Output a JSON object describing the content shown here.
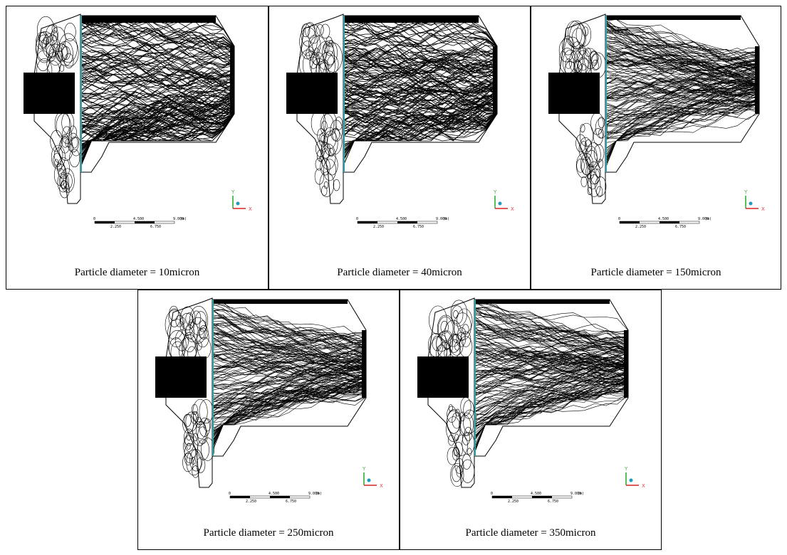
{
  "panels": [
    {
      "caption": "Particle diameter = 10micron",
      "scale_top": [
        "0",
        "4.500",
        "9.000"
      ],
      "unit": "(m)",
      "scale_bottom": [
        "2.250",
        "6.750"
      ],
      "axis_y": "Y",
      "axis_x": "X"
    },
    {
      "caption": "Particle diameter = 40micron",
      "scale_top": [
        "0",
        "4.500",
        "9.000"
      ],
      "unit": "(m)",
      "scale_bottom": [
        "2.250",
        "6.750"
      ],
      "axis_y": "Y",
      "axis_x": "X"
    },
    {
      "caption": "Particle diameter = 150micron",
      "scale_top": [
        "0",
        "4.500",
        "9.000"
      ],
      "unit": "(m)",
      "scale_bottom": [
        "2.250",
        "6.750"
      ],
      "axis_y": "Y",
      "axis_x": "X"
    },
    {
      "caption": "Particle diameter = 250micron",
      "scale_top": [
        "0",
        "4.500",
        "9.000"
      ],
      "unit": "(m)",
      "scale_bottom": [
        "2.250",
        "6.750"
      ],
      "axis_y": "Y",
      "axis_x": "X"
    },
    {
      "caption": "Particle diameter = 350micron",
      "scale_top": [
        "0",
        "4.500",
        "9.000"
      ],
      "unit": "(m)",
      "scale_bottom": [
        "2.250",
        "6.750"
      ],
      "axis_y": "Y",
      "axis_x": "X"
    }
  ]
}
